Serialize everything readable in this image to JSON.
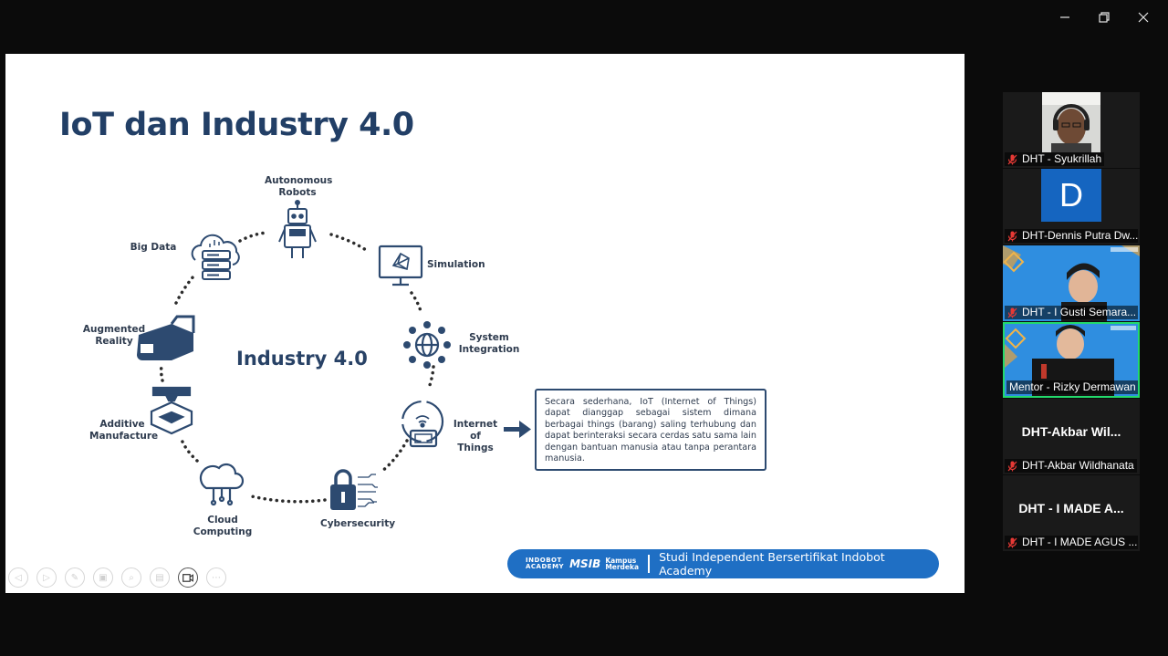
{
  "window": {
    "minimize_label": "minimize",
    "restore_label": "restore",
    "close_label": "close"
  },
  "slide": {
    "title": "IoT dan Industry 4.0",
    "center_label": "Industry 4.0",
    "nodes": {
      "autonomous_robots": "Autonomous\nRobots",
      "simulation": "Simulation",
      "system_integration": "System\nIntegration",
      "internet_of_things": "Internet of\nThings",
      "cybersecurity": "Cybersecurity",
      "cloud_computing": "Cloud Computing",
      "additive_manufacture": "Additive\nManufacture",
      "augmented_reality": "Augmented\nReality",
      "big_data": "Big Data"
    },
    "callout_text": "Secara sederhana, IoT (Internet of Things) dapat dianggap sebagai sistem dimana berbagai things (barang) saling terhubung dan dapat berinteraksi secara cerdas satu sama lain dengan bantuan manusia atau tanpa perantara manusia.",
    "banner": {
      "logo_indobot_1": "INDOBOT",
      "logo_indobot_2": "ACADEMY",
      "logo_msib": "MSIB",
      "logo_kampus_1": "Kampus",
      "logo_kampus_2": "Merdeka",
      "text": "Studi Independent Bersertifikat Indobot Academy"
    }
  },
  "toolbar_icons": [
    "prev-icon",
    "next-icon",
    "pen-icon",
    "pages-icon",
    "zoom-icon",
    "subtitle-icon",
    "camera-icon",
    "more-icon"
  ],
  "participants": [
    {
      "name": "DHT - Syukrillah",
      "type": "video"
    },
    {
      "name": "DHT-Dennis Putra Dw...",
      "type": "avatar",
      "initial": "D"
    },
    {
      "name": "DHT - I Gusti Semara...",
      "type": "video"
    },
    {
      "name": "Mentor - Rizky Dermawan",
      "type": "video",
      "speaking": true
    },
    {
      "name": "DHT-Akbar Wildhanata",
      "type": "text",
      "display": "DHT-Akbar  Wil..."
    },
    {
      "name": "DHT - I MADE AGUS ...",
      "type": "text",
      "display": "DHT - I MADE A..."
    }
  ],
  "colors": {
    "title": "#223f66",
    "accent": "#1f6fc4",
    "icon": "#2d4a70",
    "speaking": "#23d96b",
    "muted": "#e53935"
  }
}
